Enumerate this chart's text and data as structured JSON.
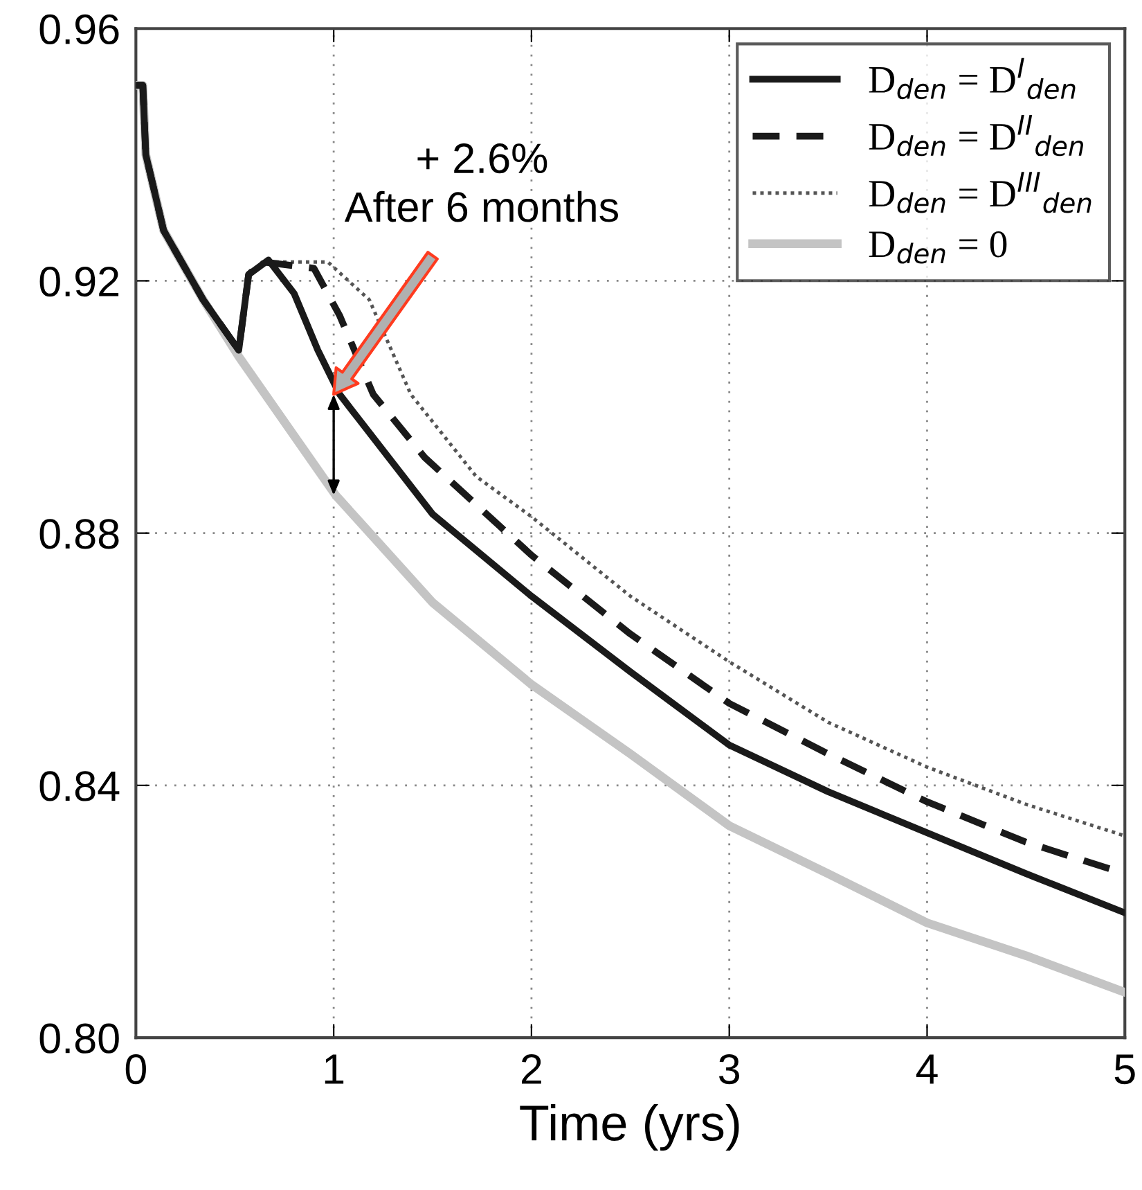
{
  "chart_data": {
    "type": "line",
    "xlabel": "Time (yrs)",
    "xlim": [
      0,
      5
    ],
    "ylim": [
      0.8,
      0.96
    ],
    "xticks": [
      0,
      1,
      2,
      3,
      4,
      5
    ],
    "yticks": [
      {
        "value": 0.8,
        "label": "0.80"
      },
      {
        "value": 0.84,
        "label": "0.84"
      },
      {
        "value": 0.88,
        "label": "0.88"
      },
      {
        "value": 0.92,
        "label": "0.92"
      },
      {
        "value": 0.96,
        "label": "0.96"
      }
    ],
    "grid": true,
    "legend": "top right",
    "marker": "none",
    "annotations": [
      "+ 2.6%\nAfter 6 months"
    ],
    "series": [
      {
        "name": "D$_{den}$ = D$^{I}$$_{den}$",
        "color": "#1a1a1a",
        "line_style": "solid",
        "x": [
          0,
          0.035,
          0.05,
          0.14,
          0.34,
          0.52,
          0.57,
          0.67,
          0.8,
          0.92,
          1.03,
          1.5,
          2,
          2.5,
          3,
          3.5,
          4,
          4.5,
          5
        ],
        "values": [
          0.951,
          0.951,
          0.94,
          0.928,
          0.917,
          0.909,
          0.921,
          0.9233,
          0.918,
          0.909,
          0.902,
          0.883,
          0.87,
          0.858,
          0.8464,
          0.839,
          0.8325,
          0.826,
          0.8198
        ]
      },
      {
        "name": "D$_{den}$ = D$^{II}$$_{den}$",
        "color": "#1a1a1a",
        "line_style": "dashed",
        "x": [
          0,
          0.035,
          0.05,
          0.14,
          0.34,
          0.52,
          0.57,
          0.64,
          0.9,
          1.03,
          1.2,
          1.46,
          2,
          2.5,
          3,
          3.5,
          4,
          4.5,
          5
        ],
        "values": [
          0.951,
          0.951,
          0.94,
          0.928,
          0.917,
          0.909,
          0.921,
          0.923,
          0.922,
          0.9145,
          0.902,
          0.892,
          0.8765,
          0.864,
          0.853,
          0.845,
          0.8374,
          0.831,
          0.826
        ]
      },
      {
        "name": "D$_{den}$ = D$^{III}$$_{den}$",
        "color": "#555555",
        "line_style": "dotted",
        "x": [
          0,
          0.035,
          0.05,
          0.14,
          0.34,
          0.52,
          0.57,
          0.64,
          0.97,
          1.18,
          1.39,
          1.72,
          2,
          2.5,
          3,
          3.5,
          4,
          4.5,
          5
        ],
        "values": [
          0.951,
          0.951,
          0.94,
          0.928,
          0.917,
          0.909,
          0.921,
          0.923,
          0.923,
          0.917,
          0.902,
          0.889,
          0.8826,
          0.87,
          0.8596,
          0.85,
          0.8429,
          0.837,
          0.832
        ]
      },
      {
        "name": "D$_{den}$ = 0",
        "color": "#c4c4c4",
        "line_style": "solid",
        "x": [
          0,
          0.035,
          0.05,
          0.14,
          0.34,
          0.52,
          1.01,
          1.5,
          2,
          2.5,
          3,
          3.5,
          4,
          4.5,
          5
        ],
        "values": [
          0.951,
          0.951,
          0.94,
          0.928,
          0.917,
          0.908,
          0.886,
          0.869,
          0.856,
          0.845,
          0.8336,
          0.826,
          0.8182,
          0.813,
          0.8072
        ]
      }
    ]
  }
}
